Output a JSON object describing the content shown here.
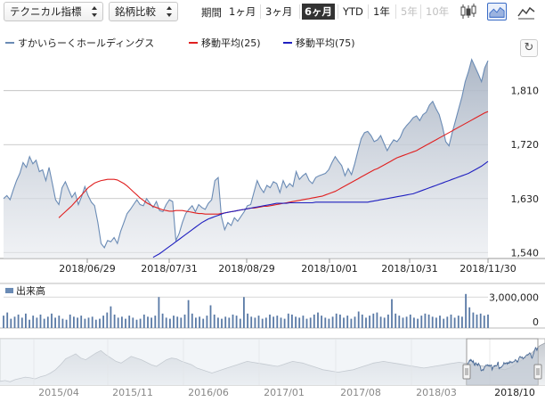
{
  "toolbar": {
    "technical_label": "テクニカル指標",
    "compare_label": "銘柄比較",
    "period_label": "期間",
    "periods": [
      {
        "label": "1ヶ月",
        "state": "normal"
      },
      {
        "label": "3ヶ月",
        "state": "normal"
      },
      {
        "label": "6ヶ月",
        "state": "active"
      },
      {
        "label": "YTD",
        "state": "normal"
      },
      {
        "label": "1年",
        "state": "normal"
      },
      {
        "label": "5年",
        "state": "disabled"
      },
      {
        "label": "10年",
        "state": "disabled"
      }
    ],
    "icons": [
      "candlestick-chart-icon",
      "area-chart-icon",
      "line-chart-icon"
    ],
    "accent": "#3a6cc6"
  },
  "legend": [
    {
      "name": "すかいらーくホールディングス",
      "color": "#6a8bb5"
    },
    {
      "name": "移動平均(25)",
      "color": "#e02020"
    },
    {
      "name": "移動平均(75)",
      "color": "#2020c0"
    }
  ],
  "volume_label": "出来高",
  "chart_data": [
    {
      "type": "line",
      "x_ticks": [
        "2018/06/29",
        "2018/07/31",
        "2018/08/29",
        "2018/10/01",
        "2018/10/31",
        "2018/11/30"
      ],
      "y_ticks": [
        1540,
        1630,
        1720,
        1810
      ],
      "y_tick_labels": [
        "1,540",
        "1,630",
        "1,720",
        "1,810"
      ],
      "ylim": [
        1530,
        1875
      ],
      "series": [
        {
          "name": "すかいらーくホールディングス",
          "color": "#6a8bb5",
          "fill": true,
          "values": [
            1630,
            1635,
            1628,
            1645,
            1660,
            1672,
            1690,
            1682,
            1700,
            1688,
            1694,
            1675,
            1678,
            1660,
            1682,
            1655,
            1628,
            1620,
            1648,
            1658,
            1645,
            1632,
            1640,
            1620,
            1633,
            1650,
            1635,
            1624,
            1618,
            1590,
            1555,
            1548,
            1560,
            1558,
            1565,
            1555,
            1575,
            1590,
            1605,
            1612,
            1620,
            1628,
            1620,
            1618,
            1630,
            1622,
            1615,
            1625,
            1610,
            1608,
            1620,
            1628,
            1625,
            1560,
            1572,
            1590,
            1605,
            1612,
            1618,
            1608,
            1620,
            1615,
            1612,
            1622,
            1628,
            1660,
            1665,
            1600,
            1578,
            1590,
            1585,
            1598,
            1592,
            1600,
            1608,
            1618,
            1620,
            1640,
            1660,
            1648,
            1640,
            1652,
            1648,
            1658,
            1655,
            1640,
            1660,
            1648,
            1655,
            1650,
            1675,
            1662,
            1668,
            1672,
            1660,
            1655,
            1665,
            1668,
            1670,
            1672,
            1678,
            1690,
            1700,
            1692,
            1685,
            1668,
            1680,
            1670,
            1688,
            1710,
            1730,
            1740,
            1742,
            1735,
            1725,
            1728,
            1735,
            1722,
            1710,
            1720,
            1728,
            1725,
            1732,
            1745,
            1752,
            1758,
            1765,
            1768,
            1760,
            1770,
            1774,
            1786,
            1792,
            1780,
            1770,
            1750,
            1725,
            1718,
            1740,
            1760,
            1780,
            1800,
            1825,
            1842,
            1862,
            1850,
            1838,
            1825,
            1848,
            1860
          ]
        },
        {
          "name": "移動平均(25)",
          "color": "#e02020",
          "fill": false,
          "values": [
            1598,
            1603,
            1608,
            1613,
            1618,
            1624,
            1630,
            1636,
            1642,
            1648,
            1652,
            1656,
            1658,
            1660,
            1661,
            1662,
            1662,
            1662,
            1661,
            1658,
            1655,
            1651,
            1646,
            1641,
            1636,
            1631,
            1627,
            1623,
            1620,
            1617,
            1615,
            1613,
            1611,
            1610,
            1609,
            1609,
            1610,
            1610,
            1610,
            1609,
            1608,
            1607,
            1606,
            1605,
            1605,
            1604,
            1604,
            1604,
            1604,
            1604,
            1605,
            1606,
            1607,
            1608,
            1609,
            1610,
            1611,
            1612,
            1613,
            1614,
            1614,
            1615,
            1616,
            1617,
            1617,
            1618,
            1619,
            1620,
            1621,
            1622,
            1623,
            1624,
            1625,
            1626,
            1627,
            1628,
            1629,
            1630,
            1631,
            1632,
            1633,
            1634,
            1636,
            1638,
            1640,
            1642,
            1645,
            1648,
            1651,
            1654,
            1657,
            1660,
            1663,
            1666,
            1669,
            1672,
            1675,
            1678,
            1680,
            1683,
            1686,
            1689,
            1692,
            1695,
            1698,
            1700,
            1702,
            1704,
            1706,
            1708,
            1710,
            1713,
            1716,
            1719,
            1722,
            1725,
            1728,
            1731,
            1734,
            1737,
            1740,
            1743,
            1746,
            1749,
            1752,
            1755,
            1758,
            1761,
            1764,
            1767,
            1770,
            1773,
            1775
          ]
        },
        {
          "name": "移動平均(75)",
          "color": "#2020c0",
          "fill": false,
          "values": [
            1532,
            1535,
            1538,
            1542,
            1546,
            1550,
            1554,
            1558,
            1562,
            1566,
            1570,
            1574,
            1578,
            1582,
            1586,
            1590,
            1593,
            1596,
            1598,
            1600,
            1602,
            1604,
            1606,
            1607,
            1608,
            1609,
            1610,
            1611,
            1612,
            1613,
            1614,
            1615,
            1616,
            1617,
            1618,
            1619,
            1620,
            1621,
            1622,
            1622,
            1622,
            1622,
            1623,
            1623,
            1623,
            1623,
            1623,
            1623,
            1623,
            1623,
            1624,
            1624,
            1624,
            1624,
            1624,
            1624,
            1624,
            1624,
            1624,
            1624,
            1624,
            1624,
            1624,
            1624,
            1624,
            1624,
            1624,
            1625,
            1626,
            1627,
            1628,
            1629,
            1630,
            1631,
            1632,
            1633,
            1634,
            1635,
            1636,
            1637,
            1638,
            1640,
            1642,
            1644,
            1646,
            1648,
            1650,
            1652,
            1654,
            1656,
            1658,
            1660,
            1662,
            1664,
            1666,
            1668,
            1670,
            1672,
            1675,
            1678,
            1681,
            1684,
            1688,
            1692
          ]
        }
      ]
    },
    {
      "type": "bar",
      "series_name": "出来高",
      "y_ticks": [
        0,
        3000000
      ],
      "y_tick_labels": [
        "0",
        "3,000,000"
      ],
      "ylim": [
        0,
        3800000
      ],
      "values": [
        1200000,
        1500000,
        900000,
        1100000,
        1300000,
        1000000,
        1400000,
        800000,
        1200000,
        1000000,
        1300000,
        900000,
        1100000,
        1400000,
        1000000,
        1200000,
        900000,
        800000,
        1300000,
        1100000,
        1000000,
        1200000,
        900000,
        1000000,
        1100000,
        800000,
        900000,
        1200000,
        1500000,
        2100000,
        1300000,
        1000000,
        1100000,
        900000,
        1200000,
        1000000,
        800000,
        900000,
        1300000,
        1100000,
        1000000,
        1200000,
        3000000,
        1400000,
        1000000,
        900000,
        1200000,
        1100000,
        1000000,
        1300000,
        2700000,
        1400000,
        1000000,
        1100000,
        900000,
        1200000,
        2200000,
        1300000,
        1000000,
        900000,
        1100000,
        1000000,
        1300000,
        1200000,
        900000,
        3000000,
        1400000,
        1100000,
        1000000,
        1200000,
        900000,
        1000000,
        1300000,
        1100000,
        1200000,
        1000000,
        900000,
        1400000,
        1300000,
        1100000,
        1000000,
        1200000,
        900000,
        1000000,
        1300000,
        1500000,
        1200000,
        1000000,
        900000,
        1100000,
        1400000,
        1300000,
        1000000,
        1200000,
        900000,
        1100000,
        1600000,
        1300000,
        1000000,
        1200000,
        1400000,
        1500000,
        1100000,
        1000000,
        1300000,
        2800000,
        1400000,
        1200000,
        1000000,
        1100000,
        1300000,
        1000000,
        900000,
        1200000,
        1400000,
        1300000,
        1100000,
        1000000,
        1200000,
        900000,
        1100000,
        1300000,
        1000000,
        1200000,
        1100000,
        3300000,
        2000000,
        1500000,
        1300000,
        1400000,
        1200000,
        1300000
      ]
    },
    {
      "type": "area",
      "role": "navigator",
      "x_ticks": [
        "2015/04",
        "2015/11",
        "2016/06",
        "2017/01",
        "2017/08",
        "2018/03",
        "2018/10"
      ],
      "selected_range": [
        "2018/06",
        "2018/11"
      ],
      "values": [
        1420,
        1430,
        1415,
        1440,
        1455,
        1470,
        1462,
        1450,
        1475,
        1490,
        1520,
        1560,
        1620,
        1690,
        1720,
        1750,
        1700,
        1680,
        1720,
        1760,
        1790,
        1740,
        1700,
        1660,
        1640,
        1680,
        1720,
        1700,
        1680,
        1650,
        1620,
        1600,
        1640,
        1680,
        1700,
        1690,
        1660,
        1640,
        1620,
        1580,
        1560,
        1540,
        1520,
        1540,
        1560,
        1580,
        1600,
        1620,
        1640,
        1660,
        1650,
        1640,
        1630,
        1620,
        1610,
        1600,
        1620,
        1640,
        1660,
        1650,
        1640,
        1620,
        1600,
        1580,
        1560,
        1550,
        1540,
        1530,
        1540,
        1550,
        1560,
        1580,
        1600,
        1620,
        1640,
        1650,
        1660,
        1650,
        1640,
        1630,
        1620,
        1610,
        1600,
        1590,
        1580,
        1590,
        1600,
        1610,
        1620,
        1630,
        1640,
        1650,
        1640,
        1630,
        1620,
        1610,
        1600,
        1590,
        1580,
        1570,
        1560,
        1580,
        1620,
        1660,
        1700,
        1740,
        1800,
        1850,
        1880
      ]
    }
  ]
}
